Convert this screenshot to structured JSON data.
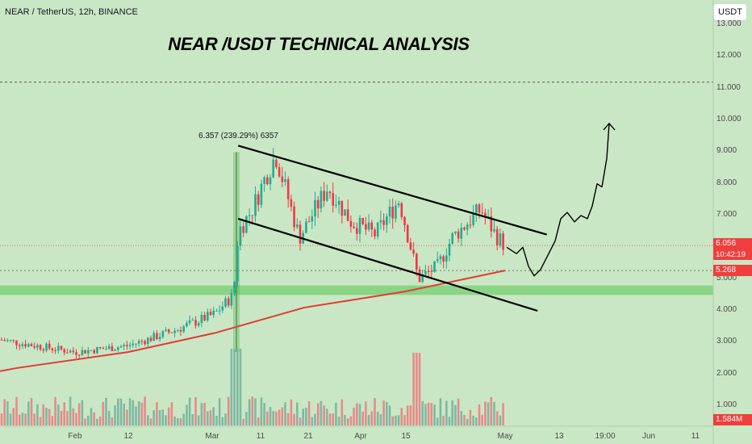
{
  "header": {
    "symbol_info": "NEAR / TetherUS, 12h, BINANCE",
    "currency_button": "USDT"
  },
  "annotation": {
    "title": "NEAR /USDT TECHNICAL ANALYSIS",
    "measure_label": "6.357 (239.29%) 6357"
  },
  "price_axis": {
    "labels": [
      "13.000",
      "12.000",
      "11.000",
      "10.000",
      "9.000",
      "8.000",
      "7.000",
      "6.000",
      "5.000",
      "4.000",
      "3.000",
      "2.000",
      "1.000"
    ],
    "current_price_tag": "6.056",
    "countdown_tag": "10:42:19",
    "ma_tag": "5.268",
    "volume_tag": "1.584M"
  },
  "time_axis": {
    "labels": [
      "Feb",
      "12",
      "Mar",
      "11",
      "21",
      "Apr",
      "15",
      "May",
      "13",
      "19:00",
      "Jun",
      "11"
    ]
  },
  "colors": {
    "background": "#c9e7c4",
    "up": "#22ab94",
    "down": "#f23645",
    "ma": "#e53935",
    "support_zone": "#7fd07a",
    "channel": "#000000",
    "volume_up": "#7fb8a4",
    "volume_down": "#e88a8a"
  },
  "chart_data": {
    "type": "candlestick",
    "symbol": "NEAR / TetherUS",
    "interval": "12h",
    "exchange": "BINANCE",
    "y_range": [
      0.6,
      13.3
    ],
    "close_path": [
      {
        "date": "Jan 20",
        "close": 3.0
      },
      {
        "date": "Feb 1",
        "close": 2.7
      },
      {
        "date": "Feb 12",
        "close": 2.9
      },
      {
        "date": "Feb 22",
        "close": 3.4
      },
      {
        "date": "Mar 1",
        "close": 3.9
      },
      {
        "date": "Mar 5",
        "close": 4.5
      },
      {
        "date": "Mar 6",
        "close": 6.5
      },
      {
        "date": "Mar 9",
        "close": 7.2
      },
      {
        "date": "Mar 12",
        "close": 8.3
      },
      {
        "date": "Mar 14",
        "close": 8.9
      },
      {
        "date": "Mar 19",
        "close": 6.3
      },
      {
        "date": "Mar 25",
        "close": 7.9
      },
      {
        "date": "Mar 30",
        "close": 6.8
      },
      {
        "date": "Apr 4",
        "close": 6.4
      },
      {
        "date": "Apr 9",
        "close": 7.5
      },
      {
        "date": "Apr 13",
        "close": 5.0
      },
      {
        "date": "Apr 17",
        "close": 5.4
      },
      {
        "date": "Apr 20",
        "close": 6.3
      },
      {
        "date": "Apr 26",
        "close": 7.2
      },
      {
        "date": "Apr 29",
        "close": 6.4
      },
      {
        "date": "May 1",
        "close": 6.056
      }
    ],
    "moving_average": [
      {
        "date": "Jan 20",
        "value": 2.2
      },
      {
        "date": "Feb 12",
        "value": 2.7
      },
      {
        "date": "Mar 1",
        "value": 3.3
      },
      {
        "date": "Mar 20",
        "value": 4.1
      },
      {
        "date": "Apr 10",
        "value": 4.6
      },
      {
        "date": "May 1",
        "value": 5.268
      }
    ],
    "support_zone": [
      4.5,
      4.8
    ],
    "resistance_line": 11.2,
    "measured_move": {
      "from": 2.7,
      "to": 9.0,
      "label": "6.357 (239.29%) 6357"
    },
    "channel_upper": [
      {
        "date": "Mar 6",
        "value": 9.2
      },
      {
        "date": "May 10",
        "value": 6.4
      }
    ],
    "channel_lower": [
      {
        "date": "Mar 6",
        "value": 6.9
      },
      {
        "date": "May 8",
        "value": 4.0
      }
    ],
    "projection": "dip toward 5.2 then breakout above channel toward 10.0",
    "last_price": 6.056,
    "last_volume": "1.584M"
  }
}
